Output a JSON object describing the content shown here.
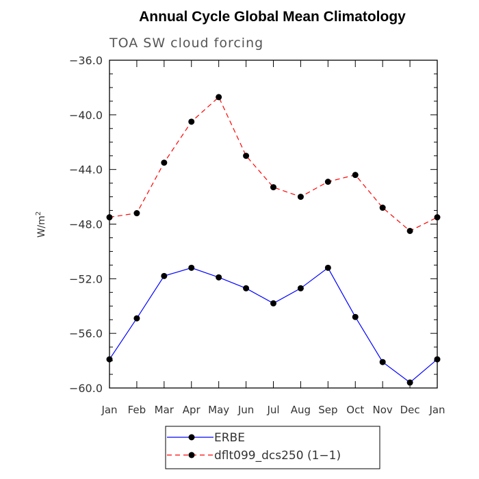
{
  "title": "Annual Cycle Global Mean Climatology",
  "chart_data": {
    "type": "line",
    "title": "Annual Cycle Global Mean Climatology",
    "subtitle": "TOA SW cloud forcing",
    "xlabel": "",
    "ylabel": "W/m",
    "ylabel_superscript": "2",
    "categories": [
      "Jan",
      "Feb",
      "Mar",
      "Apr",
      "May",
      "Jun",
      "Jul",
      "Aug",
      "Sep",
      "Oct",
      "Nov",
      "Dec",
      "Jan"
    ],
    "ylim": [
      -60,
      -36
    ],
    "yticks": [
      -36,
      -40,
      -44,
      -48,
      -52,
      -56,
      -60
    ],
    "ytick_labels": [
      "−36.0",
      "−40.0",
      "−44.0",
      "−48.0",
      "−52.0",
      "−56.0",
      "−60.0"
    ],
    "series": [
      {
        "name": "ERBE",
        "color": "#0000ff",
        "style": "solid",
        "values": [
          -57.9,
          -54.9,
          -51.8,
          -51.2,
          -51.9,
          -52.7,
          -53.8,
          -52.7,
          -51.2,
          -54.8,
          -58.1,
          -59.6,
          -57.9
        ]
      },
      {
        "name": "dflt099_dcs250 (1−1)",
        "color": "#ff0000",
        "style": "dashed",
        "values": [
          -47.5,
          -47.2,
          -43.5,
          -40.5,
          -38.7,
          -43.0,
          -45.3,
          -46.0,
          -44.9,
          -44.4,
          -46.8,
          -48.5,
          -47.5
        ]
      }
    ],
    "legend_position": "bottom"
  }
}
